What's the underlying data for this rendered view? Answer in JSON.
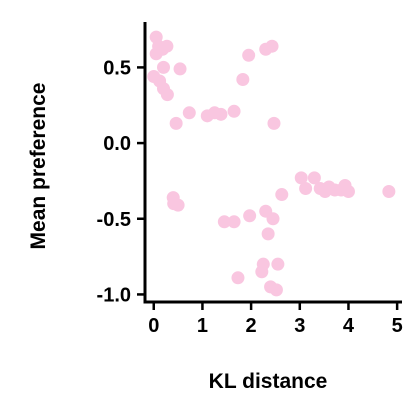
{
  "chart_data": {
    "type": "scatter",
    "title": "",
    "xlabel": "KL distance",
    "ylabel": "Mean preference",
    "xlim": [
      -0.18,
      5.1
    ],
    "ylim": [
      -1.05,
      0.8
    ],
    "xticks": [
      0,
      1,
      2,
      3,
      4,
      5
    ],
    "xtick_labels": [
      "0",
      "1",
      "2",
      "3",
      "4",
      "5"
    ],
    "yticks": [
      0.5,
      0.0,
      -0.5,
      -1.0
    ],
    "ytick_labels": [
      "0.5",
      "0.0",
      "-0.5",
      "-1.0"
    ],
    "grid": false,
    "legend": "none",
    "marker_color": "#f9c6e0",
    "axis_color": "#000000",
    "series": [
      {
        "points": [
          {
            "x": 0.05,
            "y": 0.7
          },
          {
            "x": 0.1,
            "y": 0.64
          },
          {
            "x": 0.05,
            "y": 0.59
          },
          {
            "x": 0.18,
            "y": 0.62
          },
          {
            "x": 0.27,
            "y": 0.64
          },
          {
            "x": 0.2,
            "y": 0.5
          },
          {
            "x": 0.54,
            "y": 0.49
          },
          {
            "x": 0.0,
            "y": 0.44
          },
          {
            "x": 0.12,
            "y": 0.41
          },
          {
            "x": 0.2,
            "y": 0.36
          },
          {
            "x": 0.28,
            "y": 0.32
          },
          {
            "x": 0.73,
            "y": 0.2
          },
          {
            "x": 0.46,
            "y": 0.13
          },
          {
            "x": 1.1,
            "y": 0.18
          },
          {
            "x": 1.25,
            "y": 0.2
          },
          {
            "x": 1.38,
            "y": 0.19
          },
          {
            "x": 1.65,
            "y": 0.21
          },
          {
            "x": 1.83,
            "y": 0.42
          },
          {
            "x": 1.95,
            "y": 0.58
          },
          {
            "x": 2.3,
            "y": 0.62
          },
          {
            "x": 2.43,
            "y": 0.64
          },
          {
            "x": 2.47,
            "y": 0.13
          },
          {
            "x": 0.4,
            "y": -0.36
          },
          {
            "x": 0.41,
            "y": -0.4
          },
          {
            "x": 0.5,
            "y": -0.41
          },
          {
            "x": 1.45,
            "y": -0.52
          },
          {
            "x": 1.65,
            "y": -0.52
          },
          {
            "x": 1.97,
            "y": -0.48
          },
          {
            "x": 2.3,
            "y": -0.45
          },
          {
            "x": 2.45,
            "y": -0.5
          },
          {
            "x": 2.63,
            "y": -0.34
          },
          {
            "x": 2.35,
            "y": -0.6
          },
          {
            "x": 2.25,
            "y": -0.8
          },
          {
            "x": 2.55,
            "y": -0.8
          },
          {
            "x": 2.22,
            "y": -0.85
          },
          {
            "x": 1.73,
            "y": -0.89
          },
          {
            "x": 2.4,
            "y": -0.95
          },
          {
            "x": 2.52,
            "y": -0.97
          },
          {
            "x": 3.03,
            "y": -0.23
          },
          {
            "x": 3.12,
            "y": -0.3
          },
          {
            "x": 3.3,
            "y": -0.23
          },
          {
            "x": 3.42,
            "y": -0.3
          },
          {
            "x": 3.52,
            "y": -0.32
          },
          {
            "x": 3.6,
            "y": -0.29
          },
          {
            "x": 3.72,
            "y": -0.31
          },
          {
            "x": 3.85,
            "y": -0.31
          },
          {
            "x": 3.93,
            "y": -0.28
          },
          {
            "x": 4.0,
            "y": -0.32
          },
          {
            "x": 4.83,
            "y": -0.32
          }
        ]
      }
    ]
  }
}
